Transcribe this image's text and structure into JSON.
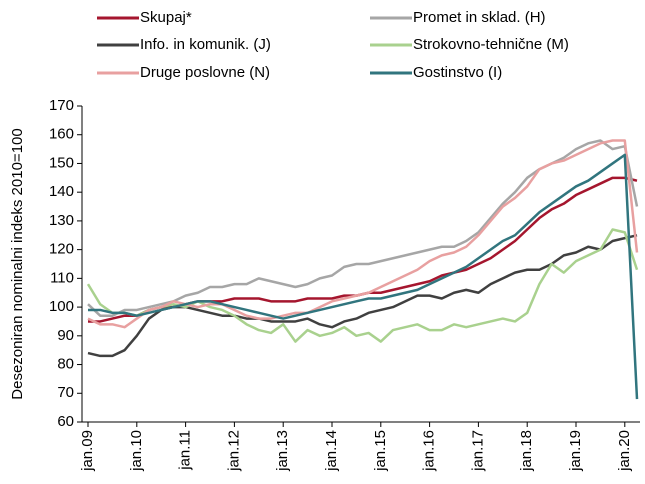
{
  "chart_data": {
    "type": "line",
    "y_label": "Desezoniran nominalni indeks 2010=100",
    "categories": [
      "jan.09",
      null,
      null,
      null,
      "jan.10",
      null,
      null,
      null,
      "jan.11",
      null,
      null,
      null,
      "jan.12",
      null,
      null,
      null,
      "jan.13",
      null,
      null,
      null,
      "jan.14",
      null,
      null,
      null,
      "jan.15",
      null,
      null,
      null,
      "jan.16",
      null,
      null,
      null,
      "jan.17",
      null,
      null,
      null,
      "jan.18",
      null,
      null,
      null,
      "jan.19",
      null,
      null,
      null,
      "jan.20",
      null
    ],
    "ylim": [
      60,
      170
    ],
    "yticks": [
      60,
      70,
      80,
      90,
      100,
      110,
      120,
      130,
      140,
      150,
      160,
      170
    ],
    "series": [
      {
        "name": "Skupaj*",
        "color": "#a5162e",
        "values": [
          95,
          95,
          96,
          97,
          97,
          99,
          100,
          100,
          101,
          102,
          102,
          102,
          103,
          103,
          103,
          102,
          102,
          102,
          103,
          103,
          103,
          104,
          104,
          105,
          105,
          106,
          107,
          108,
          109,
          111,
          112,
          113,
          115,
          117,
          120,
          123,
          127,
          131,
          134,
          136,
          139,
          141,
          143,
          145,
          145,
          144
        ]
      },
      {
        "name": "Promet in sklad. (H)",
        "color": "#a6a6a6",
        "values": [
          101,
          97,
          97,
          99,
          99,
          100,
          101,
          102,
          104,
          105,
          107,
          107,
          108,
          108,
          110,
          109,
          108,
          107,
          108,
          110,
          111,
          114,
          115,
          115,
          116,
          117,
          118,
          119,
          120,
          121,
          121,
          123,
          126,
          131,
          136,
          140,
          145,
          148,
          150,
          152,
          155,
          157,
          158,
          155,
          156,
          135
        ]
      },
      {
        "name": "Info. in komunik. (J)",
        "color": "#404040",
        "values": [
          84,
          83,
          83,
          85,
          90,
          96,
          99,
          100,
          100,
          99,
          98,
          97,
          97,
          96,
          96,
          95,
          95,
          95,
          96,
          94,
          93,
          95,
          96,
          98,
          99,
          100,
          102,
          104,
          104,
          103,
          105,
          106,
          105,
          108,
          110,
          112,
          113,
          113,
          115,
          118,
          119,
          121,
          120,
          123,
          124,
          125
        ]
      },
      {
        "name": "Strokovno-tehnične (M)",
        "color": "#a9d18e",
        "values": [
          108,
          101,
          98,
          98,
          97,
          99,
          100,
          101,
          100,
          102,
          100,
          99,
          97,
          94,
          92,
          91,
          94,
          88,
          92,
          90,
          91,
          93,
          90,
          91,
          88,
          92,
          93,
          94,
          92,
          92,
          94,
          93,
          94,
          95,
          96,
          95,
          98,
          108,
          115,
          112,
          116,
          118,
          120,
          127,
          126,
          113
        ]
      },
      {
        "name": "Druge poslovne (N)",
        "color": "#e8a0a0",
        "values": [
          96,
          94,
          94,
          93,
          96,
          99,
          100,
          102,
          101,
          100,
          101,
          101,
          99,
          97,
          96,
          96,
          97,
          98,
          98,
          100,
          102,
          103,
          104,
          105,
          107,
          109,
          111,
          113,
          116,
          118,
          119,
          121,
          125,
          130,
          135,
          138,
          142,
          148,
          150,
          151,
          153,
          155,
          157,
          158,
          158,
          119
        ]
      },
      {
        "name": "Gostinstvo (I)",
        "color": "#31757e",
        "values": [
          99,
          99,
          98,
          98,
          97,
          98,
          99,
          100,
          101,
          102,
          102,
          101,
          100,
          99,
          98,
          97,
          96,
          97,
          98,
          99,
          100,
          101,
          102,
          103,
          103,
          104,
          105,
          106,
          108,
          110,
          112,
          114,
          117,
          120,
          123,
          125,
          129,
          133,
          136,
          139,
          142,
          144,
          147,
          150,
          153,
          68
        ]
      }
    ]
  }
}
